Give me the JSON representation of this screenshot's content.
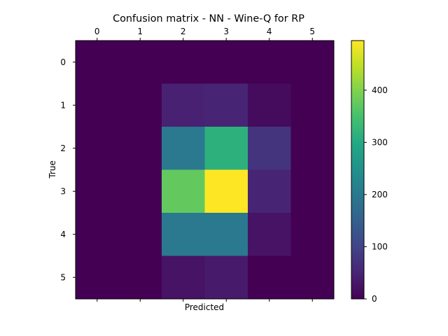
{
  "chart_data": {
    "type": "heatmap",
    "title": "Confusion matrix - NN - Wine-Q for RP",
    "xlabel": "Predicted",
    "ylabel": "True",
    "x_categories": [
      "0",
      "1",
      "2",
      "3",
      "4",
      "5"
    ],
    "y_categories": [
      "0",
      "1",
      "2",
      "3",
      "4",
      "5"
    ],
    "x_tick_position": "top",
    "values": [
      [
        0,
        0,
        0,
        0,
        0,
        0
      ],
      [
        0,
        0,
        45,
        50,
        15,
        0
      ],
      [
        0,
        0,
        200,
        315,
        75,
        0
      ],
      [
        0,
        0,
        375,
        495,
        50,
        0
      ],
      [
        0,
        0,
        200,
        200,
        25,
        0
      ],
      [
        0,
        0,
        25,
        35,
        0,
        0
      ]
    ],
    "colormap": "viridis",
    "colorbar": {
      "range": [
        0,
        495
      ],
      "ticks": [
        0,
        100,
        200,
        300,
        400
      ]
    }
  }
}
